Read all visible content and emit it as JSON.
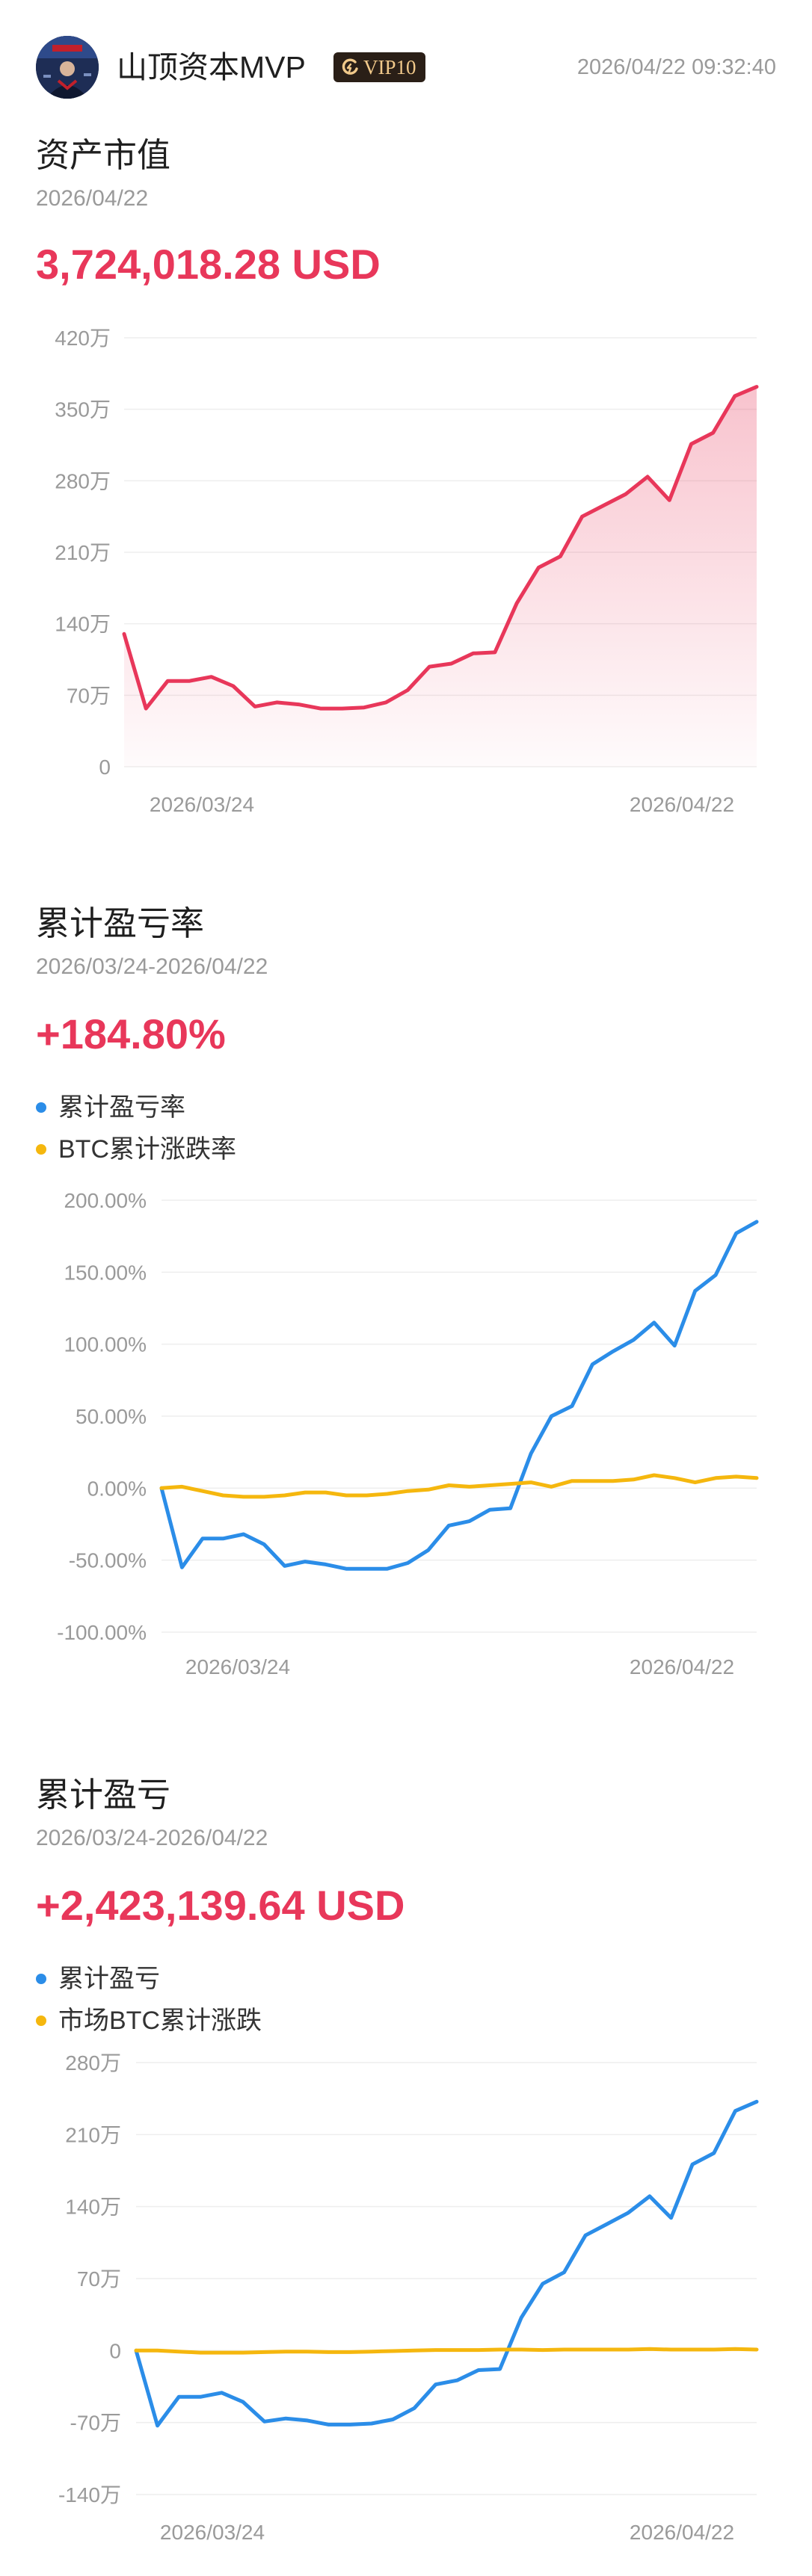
{
  "header": {
    "username": "山顶资本MVP",
    "vip_label": "VIP10",
    "timestamp": "2026/04/22 09:32:40",
    "icons": [
      "avatar-image",
      "vip-badge-icon"
    ]
  },
  "colors": {
    "red": "#e8375a",
    "blue": "#2b8de8",
    "yellow": "#f5b70e",
    "axis_text": "#9a9a9a",
    "grid": "#eeeeee"
  },
  "asset": {
    "title": "资产市值",
    "date": "2026/04/22",
    "value": "3,724,018.28 USD"
  },
  "pnl_rate": {
    "title": "累计盈亏率",
    "date_range": "2026/03/24-2026/04/22",
    "value": "+184.80%",
    "legend": [
      "累计盈亏率",
      "BTC累计涨跌率"
    ]
  },
  "pnl": {
    "title": "累计盈亏",
    "date_range": "2026/03/24-2026/04/22",
    "value": "+2,423,139.64 USD",
    "legend": [
      "累计盈亏",
      "市场BTC累计涨跌"
    ]
  },
  "chart_data": [
    {
      "type": "area",
      "title": "",
      "xlabel": "",
      "ylabel": "",
      "x_ticks": [
        "2026/03/24",
        "2026/04/22"
      ],
      "y_ticks": [
        "420万",
        "350万",
        "280万",
        "210万",
        "140万",
        "70万",
        "0"
      ],
      "y_tick_values": [
        4200000,
        3500000,
        2800000,
        2100000,
        1400000,
        700000,
        0
      ],
      "ylim": [
        0,
        4200000
      ],
      "grid": true,
      "legend": "none",
      "series": [
        {
          "color": "#e8375a",
          "values": [
            1300000,
            570000,
            840000,
            840000,
            880000,
            790000,
            590000,
            630000,
            610000,
            570000,
            570000,
            580000,
            630000,
            750000,
            980000,
            1010000,
            1110000,
            1120000,
            1600000,
            1950000,
            2060000,
            2450000,
            2560000,
            2670000,
            2840000,
            2610000,
            3160000,
            3270000,
            3630000,
            3720000
          ]
        }
      ]
    },
    {
      "type": "line",
      "title": "",
      "xlabel": "",
      "ylabel": "",
      "x_ticks": [
        "2026/03/24",
        "2026/04/22"
      ],
      "y_ticks": [
        "200.00%",
        "150.00%",
        "100.00%",
        "50.00%",
        "0.00%",
        "-50.00%",
        "-100.00%"
      ],
      "y_tick_values": [
        200,
        150,
        100,
        50,
        0,
        -50,
        -100
      ],
      "ylim": [
        -100,
        200
      ],
      "grid": true,
      "legend": "top-left",
      "series": [
        {
          "name": "累计盈亏率",
          "color": "#2b8de8",
          "values": [
            0,
            -55,
            -35,
            -35,
            -32,
            -39,
            -54,
            -51,
            -53,
            -56,
            -56,
            -56,
            -52,
            -43,
            -26,
            -23,
            -15,
            -14,
            24,
            50,
            57,
            86,
            95,
            103,
            115,
            99,
            137,
            148,
            177,
            185
          ]
        },
        {
          "name": "BTC累计涨跌率",
          "color": "#f5b70e",
          "values": [
            0,
            1,
            -2,
            -5,
            -6,
            -6,
            -5,
            -3,
            -3,
            -5,
            -5,
            -4,
            -2,
            -1,
            2,
            1,
            2,
            3,
            4,
            1,
            5,
            5,
            5,
            6,
            9,
            7,
            4,
            7,
            8,
            7
          ]
        }
      ]
    },
    {
      "type": "line",
      "title": "",
      "xlabel": "",
      "ylabel": "",
      "x_ticks": [
        "2026/03/24",
        "2026/04/22"
      ],
      "y_ticks": [
        "280万",
        "210万",
        "140万",
        "70万",
        "0",
        "-70万",
        "-140万"
      ],
      "y_tick_values": [
        2800000,
        2100000,
        1400000,
        700000,
        0,
        -700000,
        -1400000
      ],
      "ylim": [
        -1400000,
        2800000
      ],
      "grid": true,
      "legend": "top-left",
      "series": [
        {
          "name": "累计盈亏",
          "color": "#2b8de8",
          "values": [
            0,
            -730000,
            -450000,
            -450000,
            -410000,
            -500000,
            -690000,
            -660000,
            -680000,
            -720000,
            -720000,
            -710000,
            -670000,
            -560000,
            -330000,
            -290000,
            -190000,
            -180000,
            320000,
            650000,
            760000,
            1120000,
            1230000,
            1340000,
            1500000,
            1290000,
            1810000,
            1920000,
            2330000,
            2420000
          ]
        },
        {
          "name": "市场BTC累计涨跌",
          "color": "#f5b70e",
          "values": [
            0,
            0,
            -10000,
            -20000,
            -20000,
            -20000,
            -15000,
            -10000,
            -10000,
            -15000,
            -15000,
            -10000,
            -5000,
            0,
            5000,
            5000,
            5000,
            10000,
            10000,
            5000,
            10000,
            10000,
            10000,
            10000,
            15000,
            10000,
            10000,
            10000,
            15000,
            10000
          ]
        }
      ]
    }
  ]
}
